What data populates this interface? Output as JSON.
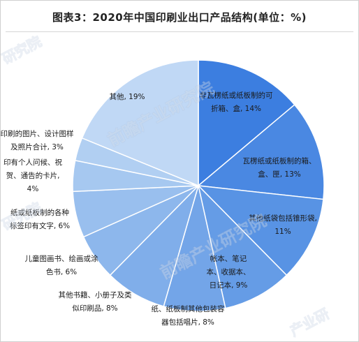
{
  "chart_data": {
    "type": "pie",
    "title": "图表3：2020年中国印刷业出口产品结构(单位：%)",
    "series": [
      {
        "label_lines": [
          "非瓦楞纸或纸板制的可",
          "折箱、盒, 14%"
        ],
        "value": 14,
        "color": "#3c7ee0"
      },
      {
        "label_lines": [
          "瓦楞纸或纸板制的箱、",
          "盒、匣, 13%"
        ],
        "value": 13,
        "color": "#4a88e2"
      },
      {
        "label_lines": [
          "其他纸袋包括锥形袋,",
          "11%"
        ],
        "value": 11,
        "color": "#5893e4"
      },
      {
        "label_lines": [
          "帐本、笔记",
          "本、收据本、",
          "日记本, 9%"
        ],
        "value": 9,
        "color": "#659ce6"
      },
      {
        "label_lines": [
          "纸、纸板制其他包装容",
          "器包括唱片, 8%"
        ],
        "value": 8,
        "color": "#73a5e8"
      },
      {
        "label_lines": [
          "其他书籍、小册子及类",
          "似印刷品, 8%"
        ],
        "value": 8,
        "color": "#80aeea"
      },
      {
        "label_lines": [
          "儿童图画书、绘画或涂",
          "色书, 6%"
        ],
        "value": 6,
        "color": "#8db7ec"
      },
      {
        "label_lines": [
          "纸或纸板制的各种",
          "标签印有文字, 6%"
        ],
        "value": 6,
        "color": "#99bfee"
      },
      {
        "label_lines": [
          "印有个人问候、祝",
          "贺、通告的卡片,",
          "4%"
        ],
        "value": 4,
        "color": "#a6c8f0"
      },
      {
        "label_lines": [
          "印刷的图片、设计图样",
          "及照片合计, 3%"
        ],
        "value": 3,
        "color": "#b1cff2"
      },
      {
        "label_lines": [
          "其他, 19%"
        ],
        "value": 19,
        "color": "#c0d8f5"
      }
    ]
  },
  "watermarks": [
    "研究院",
    "前瞻产业研究院",
    "研究院",
    "前瞻产业研究院",
    "产业研"
  ]
}
